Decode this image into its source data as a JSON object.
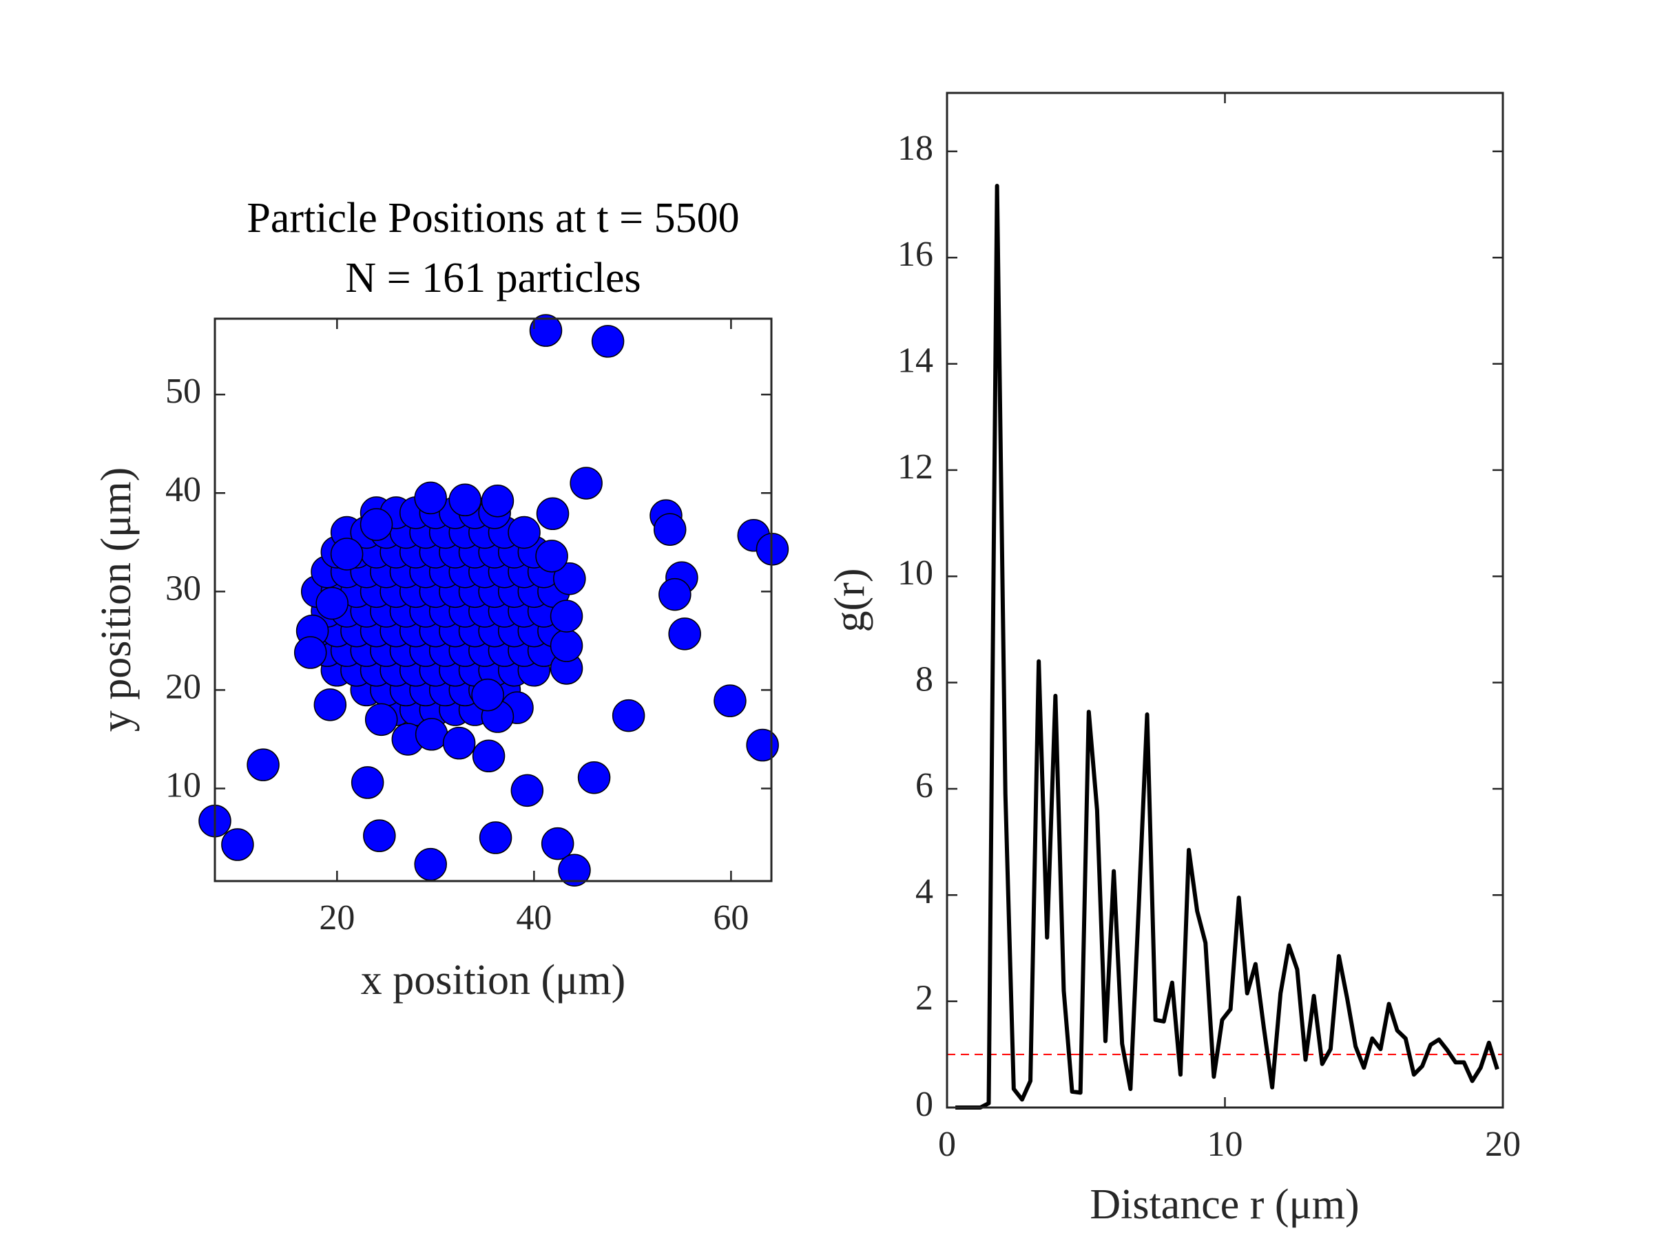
{
  "chart_data": [
    {
      "type": "scatter",
      "title": "Particle Positions at t = 5500",
      "subtitle": "N = 161 particles",
      "x_label": "x position (μm)",
      "y_label": "y position (μm)",
      "color": "#0000ff",
      "xlim": [
        7.6,
        64.1
      ],
      "ylim": [
        0.6,
        57.7
      ],
      "xticks": [
        20,
        40,
        60
      ],
      "yticks": [
        10,
        20,
        30,
        40,
        50
      ],
      "x": [
        26,
        28,
        30,
        32,
        34,
        23,
        25,
        27,
        29,
        31,
        33,
        35,
        37,
        20,
        22,
        24,
        26,
        28,
        30,
        32,
        34,
        36,
        38,
        40,
        19,
        21,
        23,
        25,
        27,
        29,
        31,
        33,
        35,
        37,
        39,
        41,
        18,
        20,
        22,
        24,
        26,
        28,
        30,
        32,
        34,
        36,
        38,
        40,
        42,
        19,
        21,
        23,
        25,
        27,
        29,
        31,
        33,
        35,
        37,
        39,
        41,
        18,
        20,
        22,
        24,
        26,
        28,
        30,
        32,
        34,
        36,
        38,
        40,
        42,
        19,
        21,
        23,
        25,
        27,
        29,
        31,
        33,
        35,
        37,
        39,
        41,
        20,
        22,
        24,
        26,
        28,
        30,
        32,
        34,
        36,
        38,
        40,
        21,
        23,
        25,
        27,
        29,
        31,
        33,
        35,
        37,
        39,
        24,
        26,
        28,
        30,
        32,
        34,
        36,
        29.5,
        33,
        36.3,
        17.5,
        17.3,
        19.5,
        19.3,
        21,
        24,
        38.3,
        43.3,
        43.3,
        43.3,
        43.6,
        41.8,
        41.9,
        36.3,
        35.3,
        24.5,
        27.2,
        29.6,
        32.4,
        41.2,
        47.5,
        45.3,
        53.4,
        53.8,
        55,
        54.3,
        55.3,
        62.3,
        64.2,
        59.9,
        63.2,
        49.6,
        46.1,
        39.3,
        35.4,
        23.1,
        12.5,
        7.6,
        9.9,
        24.3,
        29.5,
        36.1,
        42.4,
        44.1
      ],
      "y": [
        18,
        18,
        18,
        18,
        18,
        20,
        20,
        20,
        20,
        20,
        20,
        20,
        20,
        22,
        22,
        22,
        22,
        22,
        22,
        22,
        22,
        22,
        22,
        22,
        24,
        24,
        24,
        24,
        24,
        24,
        24,
        24,
        24,
        24,
        24,
        24,
        26,
        26,
        26,
        26,
        26,
        26,
        26,
        26,
        26,
        26,
        26,
        26,
        26,
        28,
        28,
        28,
        28,
        28,
        28,
        28,
        28,
        28,
        28,
        28,
        28,
        30,
        30,
        30,
        30,
        30,
        30,
        30,
        30,
        30,
        30,
        30,
        30,
        30,
        32,
        32,
        32,
        32,
        32,
        32,
        32,
        32,
        32,
        32,
        32,
        32,
        34,
        34,
        34,
        34,
        34,
        34,
        34,
        34,
        34,
        34,
        34,
        36,
        36,
        36,
        36,
        36,
        36,
        36,
        36,
        36,
        36,
        38,
        38,
        38,
        38,
        38,
        38,
        38,
        39.5,
        39.3,
        39.2,
        26,
        23.8,
        28.8,
        18.5,
        33.8,
        36.8,
        18.2,
        22.2,
        24.5,
        27.5,
        31.3,
        33.6,
        37.9,
        17.3,
        19.5,
        17,
        15,
        15.5,
        14.6,
        56.5,
        55.4,
        41,
        37.7,
        36.3,
        31.4,
        29.7,
        25.7,
        35.7,
        34.3,
        18.9,
        14.4,
        17.4,
        11.1,
        9.8,
        13.3,
        10.6,
        12.4,
        6.7,
        4.3,
        5.2,
        2.3,
        5,
        4.4,
        1.7
      ]
    },
    {
      "type": "line",
      "x_label": "Distance r (μm)",
      "y_label": "g(r)",
      "color": "#000000",
      "xlim": [
        0,
        20
      ],
      "ylim": [
        0,
        19.1
      ],
      "xticks": [
        0,
        10,
        20
      ],
      "yticks": [
        0,
        2,
        4,
        6,
        8,
        10,
        12,
        14,
        16,
        18
      ],
      "reference_line": {
        "value": 1,
        "color": "#ff0000"
      },
      "x": [
        0.3,
        0.6,
        0.9,
        1.2,
        1.5,
        1.8,
        2.1,
        2.4,
        2.7,
        3.0,
        3.3,
        3.6,
        3.9,
        4.2,
        4.5,
        4.8,
        5.1,
        5.4,
        5.7,
        6.0,
        6.3,
        6.6,
        6.9,
        7.2,
        7.5,
        7.8,
        8.1,
        8.4,
        8.7,
        9.0,
        9.3,
        9.6,
        9.9,
        10.2,
        10.5,
        10.8,
        11.1,
        11.4,
        11.7,
        12.0,
        12.3,
        12.6,
        12.9,
        13.2,
        13.5,
        13.8,
        14.1,
        14.4,
        14.7,
        15.0,
        15.3,
        15.6,
        15.9,
        16.2,
        16.5,
        16.8,
        17.1,
        17.4,
        17.7,
        18.0,
        18.3,
        18.6,
        18.9,
        19.2,
        19.5,
        19.8
      ],
      "values": [
        0,
        0,
        0,
        0,
        0.08,
        17.35,
        5.9,
        0.35,
        0.15,
        0.5,
        8.4,
        3.2,
        7.75,
        2.2,
        0.3,
        0.28,
        7.45,
        5.6,
        1.25,
        4.45,
        1.2,
        0.35,
        3.8,
        7.4,
        1.65,
        1.62,
        2.35,
        0.62,
        4.85,
        3.7,
        3.1,
        0.58,
        1.65,
        1.85,
        3.95,
        2.15,
        2.7,
        1.5,
        0.38,
        2.15,
        3.05,
        2.6,
        0.9,
        2.1,
        0.82,
        1.1,
        2.85,
        2.05,
        1.15,
        0.75,
        1.3,
        1.1,
        1.95,
        1.45,
        1.3,
        0.62,
        0.78,
        1.18,
        1.28,
        1.08,
        0.85,
        0.85,
        0.5,
        0.75,
        1.22,
        0.72
      ]
    }
  ]
}
